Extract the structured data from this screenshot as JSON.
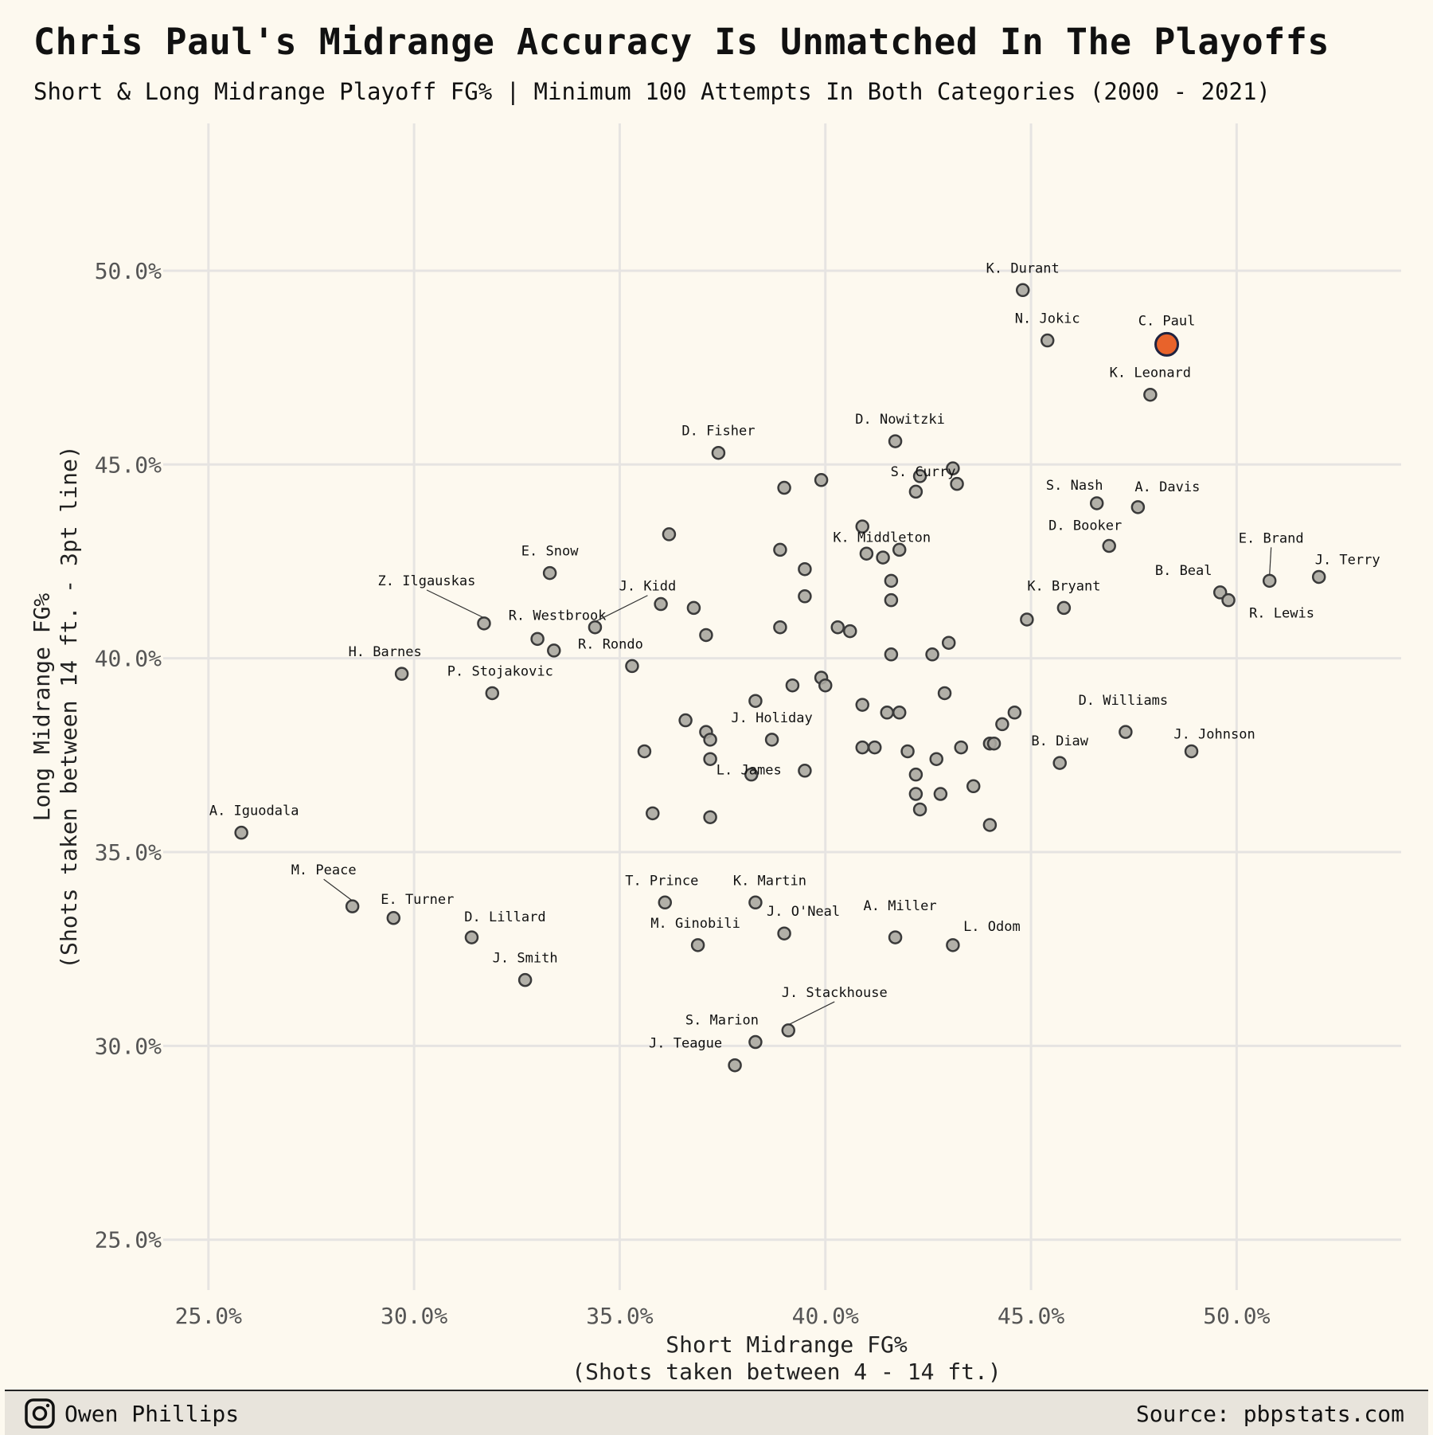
{
  "chart_data": {
    "type": "scatter",
    "title": "Chris Paul's Midrange Accuracy Is Unmatched In The Playoffs",
    "subtitle": "Short & Long Midrange Playoff FG% | Minimum 100 Attempts In Both Categories (2000 - 2021)",
    "xlabel": [
      "Short Midrange FG%",
      "(Shots taken between 4 - 14 ft.)"
    ],
    "ylabel": [
      "Long Midrange FG%",
      "(Shots taken between 14 ft. - 3pt line)"
    ],
    "xlim": [
      23.9,
      54.0
    ],
    "ylim": [
      23.7,
      53.8
    ],
    "x_ticks": [
      25,
      30,
      35,
      40,
      45,
      50
    ],
    "y_ticks": [
      25,
      30,
      35,
      40,
      45,
      50
    ],
    "x_tick_labels": [
      "25.0%",
      "30.0%",
      "35.0%",
      "40.0%",
      "45.0%",
      "50.0%"
    ],
    "y_tick_labels": [
      "25.0%",
      "30.0%",
      "35.0%",
      "40.0%",
      "45.0%",
      "50.0%"
    ],
    "grid": true,
    "highlight_color": "#e8632b",
    "point_color": "#aaa7a0",
    "labeled_points": [
      {
        "label": "C. Paul",
        "x": 48.3,
        "y": 48.1,
        "highlight": true
      },
      {
        "label": "K. Durant",
        "x": 44.8,
        "y": 49.5
      },
      {
        "label": "N. Jokic",
        "x": 45.4,
        "y": 48.2
      },
      {
        "label": "K. Leonard",
        "x": 47.9,
        "y": 46.8
      },
      {
        "label": "D. Nowitzki",
        "x": 41.7,
        "y": 45.6
      },
      {
        "label": "D. Fisher",
        "x": 37.4,
        "y": 45.3
      },
      {
        "label": "S. Curry",
        "x": 42.3,
        "y": 44.7
      },
      {
        "label": "S. Nash",
        "x": 46.6,
        "y": 44.0
      },
      {
        "label": "A. Davis",
        "x": 47.6,
        "y": 43.9
      },
      {
        "label": "D. Booker",
        "x": 46.9,
        "y": 42.9
      },
      {
        "label": "K. Middleton",
        "x": 41.8,
        "y": 42.8
      },
      {
        "label": "E. Brand",
        "x": 50.8,
        "y": 42.0
      },
      {
        "label": "J. Terry",
        "x": 52.0,
        "y": 42.1
      },
      {
        "label": "B. Beal",
        "x": 49.6,
        "y": 41.7
      },
      {
        "label": "R. Lewis",
        "x": 49.8,
        "y": 41.5
      },
      {
        "label": "K. Bryant",
        "x": 45.8,
        "y": 41.3
      },
      {
        "label": "E. Snow",
        "x": 33.3,
        "y": 42.2
      },
      {
        "label": "Z. Ilgauskas",
        "x": 31.7,
        "y": 40.9
      },
      {
        "label": "R. Westbrook",
        "x": 33.0,
        "y": 40.5
      },
      {
        "label": "J. Kidd",
        "x": 34.4,
        "y": 40.8
      },
      {
        "label": "R. Rondo",
        "x": 35.3,
        "y": 39.8
      },
      {
        "label": "H. Barnes",
        "x": 29.7,
        "y": 39.6
      },
      {
        "label": "P. Stojakovic",
        "x": 31.9,
        "y": 39.1
      },
      {
        "label": "D. Williams",
        "x": 47.3,
        "y": 38.1
      },
      {
        "label": "J. Johnson",
        "x": 48.9,
        "y": 37.6
      },
      {
        "label": "B. Diaw",
        "x": 45.7,
        "y": 37.3
      },
      {
        "label": "J. Holiday",
        "x": 38.7,
        "y": 37.9
      },
      {
        "label": "L. James",
        "x": 38.2,
        "y": 37.0
      },
      {
        "label": "A. Iguodala",
        "x": 25.8,
        "y": 35.5
      },
      {
        "label": "M. Peace",
        "x": 28.5,
        "y": 33.6
      },
      {
        "label": "E. Turner",
        "x": 29.5,
        "y": 33.3
      },
      {
        "label": "D. Lillard",
        "x": 31.4,
        "y": 32.8
      },
      {
        "label": "J. Smith",
        "x": 32.7,
        "y": 31.7
      },
      {
        "label": "T. Prince",
        "x": 36.1,
        "y": 33.7
      },
      {
        "label": "K. Martin",
        "x": 38.3,
        "y": 33.7
      },
      {
        "label": "J. O'Neal",
        "x": 39.0,
        "y": 32.9
      },
      {
        "label": "M. Ginobili",
        "x": 36.9,
        "y": 32.6
      },
      {
        "label": "A. Miller",
        "x": 41.7,
        "y": 32.8
      },
      {
        "label": "L. Odom",
        "x": 43.1,
        "y": 32.6
      },
      {
        "label": "J. Stackhouse",
        "x": 39.1,
        "y": 30.4
      },
      {
        "label": "S. Marion",
        "x": 38.3,
        "y": 30.1
      },
      {
        "label": "J. Teague",
        "x": 37.8,
        "y": 29.5
      }
    ],
    "points": [
      [
        44.9,
        41.0
      ],
      [
        39.0,
        44.4
      ],
      [
        39.9,
        44.6
      ],
      [
        42.2,
        44.3
      ],
      [
        43.1,
        44.9
      ],
      [
        43.2,
        44.5
      ],
      [
        36.2,
        43.2
      ],
      [
        40.9,
        43.4
      ],
      [
        38.9,
        42.8
      ],
      [
        41.0,
        42.7
      ],
      [
        41.4,
        42.6
      ],
      [
        39.5,
        42.3
      ],
      [
        41.6,
        42.0
      ],
      [
        39.5,
        41.6
      ],
      [
        41.6,
        41.5
      ],
      [
        36.0,
        41.4
      ],
      [
        36.8,
        41.3
      ],
      [
        38.9,
        40.8
      ],
      [
        40.3,
        40.8
      ],
      [
        40.6,
        40.7
      ],
      [
        37.1,
        40.6
      ],
      [
        43.0,
        40.4
      ],
      [
        33.4,
        40.2
      ],
      [
        41.6,
        40.1
      ],
      [
        42.6,
        40.1
      ],
      [
        39.9,
        39.5
      ],
      [
        40.0,
        39.3
      ],
      [
        39.2,
        39.3
      ],
      [
        42.9,
        39.1
      ],
      [
        38.3,
        38.9
      ],
      [
        40.9,
        38.8
      ],
      [
        41.5,
        38.6
      ],
      [
        41.8,
        38.6
      ],
      [
        44.6,
        38.6
      ],
      [
        36.6,
        38.4
      ],
      [
        44.3,
        38.3
      ],
      [
        37.1,
        38.1
      ],
      [
        37.2,
        37.9
      ],
      [
        44.0,
        37.8
      ],
      [
        44.1,
        37.8
      ],
      [
        40.9,
        37.7
      ],
      [
        41.2,
        37.7
      ],
      [
        43.3,
        37.7
      ],
      [
        35.6,
        37.6
      ],
      [
        42.0,
        37.6
      ],
      [
        37.2,
        37.4
      ],
      [
        42.7,
        37.4
      ],
      [
        39.5,
        37.1
      ],
      [
        42.2,
        37.0
      ],
      [
        43.6,
        36.7
      ],
      [
        42.2,
        36.5
      ],
      [
        42.8,
        36.5
      ],
      [
        42.3,
        36.1
      ],
      [
        35.8,
        36.0
      ],
      [
        37.2,
        35.9
      ],
      [
        44.0,
        35.7
      ]
    ]
  },
  "footer": {
    "author": "Owen Phillips",
    "source": "Source: pbpstats.com",
    "icon": "instagram-icon"
  }
}
